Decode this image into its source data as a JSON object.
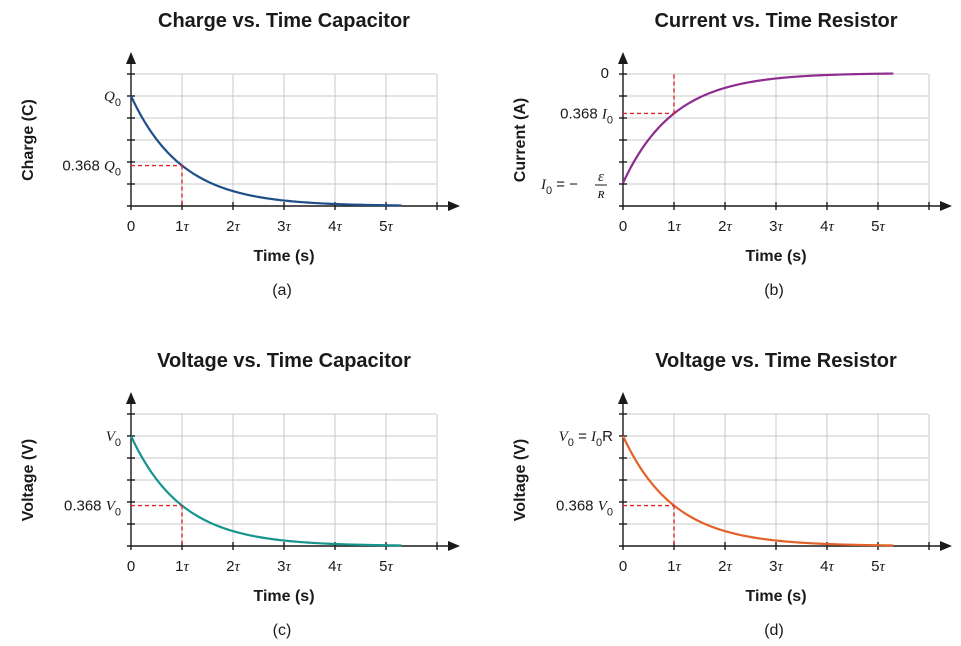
{
  "chart_data": [
    {
      "type": "line",
      "title": "Charge vs. Time Capacitor",
      "xlabel": "Time (s)",
      "ylabel": "Charge (C)",
      "caption": "(a)",
      "kind": "decay",
      "color": "#1f4e89",
      "x_ticks": [
        "0",
        "1",
        "2",
        "3",
        "4",
        "5"
      ],
      "tau_symbol": "τ",
      "y_label_top": {
        "pre": "",
        "sym": "Q",
        "sub": "0",
        "post": ""
      },
      "y_label_ref": {
        "pre": "0.368 ",
        "sym": "Q",
        "sub": "0",
        "post": ""
      },
      "ref_value": 0.368,
      "x_range_tau": [
        0,
        5.3
      ]
    },
    {
      "type": "line",
      "title": "Current vs. Time Resistor",
      "xlabel": "Time (s)",
      "ylabel": "Current (A)",
      "caption": "(b)",
      "kind": "rise",
      "color": "#8e2c8f",
      "x_ticks": [
        "0",
        "1",
        "2",
        "3",
        "4",
        "5"
      ],
      "tau_symbol": "τ",
      "y_label_zero": "0",
      "y_label_ref": {
        "pre": "0.368 ",
        "sym": "I",
        "sub": "0",
        "post": ""
      },
      "y_label_bottom": {
        "sym": "I",
        "sub": "0",
        "eq": " = −",
        "num": "ε",
        "den": "R"
      },
      "ref_value": 0.368,
      "x_range_tau": [
        0,
        5.3
      ]
    },
    {
      "type": "line",
      "title": "Voltage vs. Time Capacitor",
      "xlabel": "Time (s)",
      "ylabel": "Voltage (V)",
      "caption": "(c)",
      "kind": "decay",
      "color": "#16958f",
      "x_ticks": [
        "0",
        "1",
        "2",
        "3",
        "4",
        "5"
      ],
      "tau_symbol": "τ",
      "y_label_top": {
        "pre": "",
        "sym": "V",
        "sub": "0",
        "post": ""
      },
      "y_label_ref": {
        "pre": "0.368 ",
        "sym": "V",
        "sub": "0",
        "post": ""
      },
      "ref_value": 0.368,
      "x_range_tau": [
        0,
        5.3
      ]
    },
    {
      "type": "line",
      "title": "Voltage vs. Time Resistor",
      "xlabel": "Time (s)",
      "ylabel": "Voltage (V)",
      "caption": "(d)",
      "kind": "decay",
      "color": "#e2622a",
      "x_ticks": [
        "0",
        "1",
        "2",
        "3",
        "4",
        "5"
      ],
      "tau_symbol": "τ",
      "y_label_top": {
        "pre": "",
        "sym": "V",
        "sub": "0",
        "post": " = ",
        "sym2": "I",
        "sub2": "0",
        "post2": "R"
      },
      "y_label_ref": {
        "pre": "0.368 ",
        "sym": "V",
        "sub": "0",
        "post": ""
      },
      "ref_value": 0.368,
      "x_range_tau": [
        0,
        5.3
      ]
    }
  ]
}
